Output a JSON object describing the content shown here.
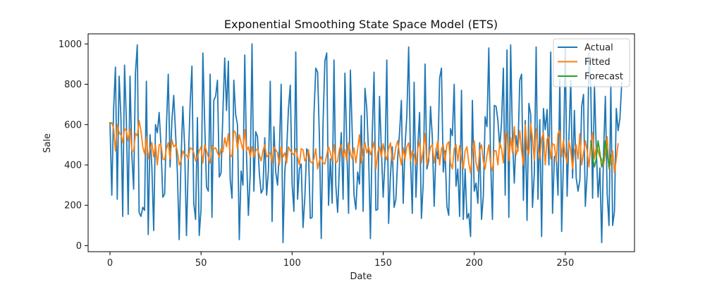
{
  "chart_data": {
    "type": "line",
    "title": "Exponential Smoothing State Space Model (ETS)",
    "xlabel": "Date",
    "ylabel": "Sale",
    "xlim": [
      -12,
      288
    ],
    "ylim": [
      -30,
      1050
    ],
    "xticks": [
      0,
      50,
      100,
      150,
      200,
      250
    ],
    "yticks": [
      0,
      200,
      400,
      600,
      800,
      1000
    ],
    "grid": false,
    "legend_position": "top-right",
    "series": [
      {
        "name": "Actual",
        "color": "#1f77b4",
        "x_start": 0,
        "values": [
          610,
          250,
          680,
          885,
          230,
          840,
          640,
          145,
          895,
          620,
          155,
          840,
          450,
          280,
          860,
          995,
          165,
          145,
          190,
          175,
          815,
          55,
          550,
          390,
          75,
          600,
          560,
          660,
          495,
          240,
          255,
          590,
          850,
          390,
          620,
          745,
          560,
          365,
          30,
          420,
          690,
          490,
          50,
          410,
          700,
          890,
          210,
          130,
          635,
          50,
          180,
          955,
          610,
          290,
          270,
          850,
          140,
          720,
          740,
          820,
          340,
          360,
          660,
          930,
          670,
          915,
          330,
          235,
          820,
          650,
          600,
          30,
          370,
          300,
          945,
          440,
          150,
          355,
          1000,
          270,
          565,
          540,
          360,
          260,
          280,
          535,
          250,
          370,
          815,
          120,
          590,
          365,
          300,
          470,
          800,
          15,
          370,
          470,
          680,
          795,
          305,
          170,
          960,
          230,
          380,
          405,
          90,
          240,
          480,
          460,
          135,
          140,
          650,
          880,
          860,
          535,
          35,
          610,
          915,
          955,
          200,
          430,
          210,
          920,
          300,
          165,
          400,
          560,
          230,
          855,
          505,
          160,
          870,
          560,
          250,
          180,
          365,
          305,
          645,
          170,
          780,
          680,
          455,
          35,
          550,
          860,
          175,
          180,
          740,
          480,
          240,
          420,
          920,
          110,
          350,
          490,
          190,
          230,
          440,
          560,
          720,
          210,
          490,
          645,
          985,
          430,
          160,
          810,
          240,
          490,
          660,
          135,
          310,
          900,
          380,
          420,
          690,
          535,
          195,
          480,
          430,
          830,
          880,
          365,
          470,
          195,
          150,
          580,
          545,
          800,
          295,
          380,
          145,
          770,
          130,
          380,
          135,
          160,
          45,
          720,
          270,
          310,
          210,
          510,
          130,
          245,
          640,
          590,
          980,
          420,
          130,
          695,
          690,
          620,
          485,
          610,
          880,
          250,
          970,
          140,
          995,
          530,
          310,
          545,
          470,
          820,
          850,
          225,
          620,
          125,
          705,
          650,
          190,
          360,
          985,
          230,
          625,
          45,
          680,
          575,
          675,
          400,
          960,
          160,
          440,
          450,
          250,
          825,
          70,
          430,
          985,
          245,
          535,
          820,
          335,
          670,
          335,
          270,
          325,
          690,
          750,
          195,
          355,
          955,
          780,
          235,
          795,
          480,
          240,
          385,
          15,
          455,
          740,
          255,
          100,
          795,
          100,
          170,
          680,
          570,
          630,
          810
        ]
      },
      {
        "name": "Fitted",
        "color": "#ff7f0e",
        "x_start": 0,
        "values": [
          600,
          610,
          580,
          470,
          600,
          560,
          550,
          510,
          580,
          570,
          520,
          580,
          470,
          470,
          555,
          545,
          620,
          570,
          490,
          455,
          540,
          430,
          480,
          510,
          440,
          500,
          400,
          500,
          505,
          430,
          425,
          480,
          510,
          430,
          525,
          490,
          500,
          470,
          400,
          420,
          470,
          450,
          450,
          430,
          485,
          480,
          460,
          420,
          440,
          470,
          490,
          410,
          500,
          470,
          440,
          410,
          495,
          480,
          485,
          460,
          440,
          480,
          465,
          535,
          490,
          555,
          450,
          440,
          570,
          560,
          480,
          550,
          510,
          475,
          575,
          470,
          490,
          440,
          490,
          440,
          470,
          480,
          450,
          420,
          470,
          500,
          440,
          450,
          460,
          410,
          490,
          475,
          460,
          400,
          490,
          440,
          460,
          410,
          490,
          470,
          460,
          450,
          480,
          440,
          400,
          480,
          475,
          420,
          440,
          475,
          415,
          410,
          430,
          480,
          380,
          420,
          440,
          410,
          405,
          450,
          490,
          460,
          420,
          500,
          410,
          420,
          480,
          500,
          440,
          475,
          420,
          510,
          460,
          430,
          485,
          410,
          480,
          550,
          410,
          470,
          510,
          460,
          490,
          450,
          480,
          515,
          380,
          460,
          490,
          440,
          505,
          450,
          425,
          480,
          510,
          420,
          430,
          490,
          520,
          450,
          400,
          485,
          430,
          490,
          510,
          420,
          470,
          450,
          400,
          480,
          515,
          410,
          470,
          555,
          400,
          440,
          490,
          500,
          410,
          470,
          520,
          400,
          480,
          500,
          420,
          500,
          515,
          410,
          380,
          480,
          500,
          420,
          495,
          430,
          380,
          470,
          490,
          410,
          360,
          460,
          520,
          410,
          370,
          470,
          500,
          420,
          380,
          450,
          500,
          400,
          370,
          470,
          470,
          400,
          510,
          480,
          410,
          555,
          560,
          420,
          535,
          460,
          590,
          450,
          480,
          570,
          470,
          400,
          600,
          480,
          455,
          605,
          530,
          420,
          580,
          480,
          430,
          530,
          560,
          400,
          530,
          540,
          430,
          505,
          500,
          415,
          555,
          570,
          440,
          520,
          450,
          410,
          520,
          470,
          380,
          470,
          500,
          430,
          555,
          400,
          460,
          520,
          470,
          390,
          500,
          560,
          430,
          490,
          470,
          440,
          430,
          400,
          460,
          540,
          380,
          410,
          470,
          360,
          430,
          505
        ]
      },
      {
        "name": "Forecast",
        "color": "#2ca02c",
        "x_start": 264,
        "values": [
          520,
          440,
          390,
          430,
          520,
          460,
          390,
          420,
          520,
          460,
          390,
          450
        ]
      }
    ]
  }
}
